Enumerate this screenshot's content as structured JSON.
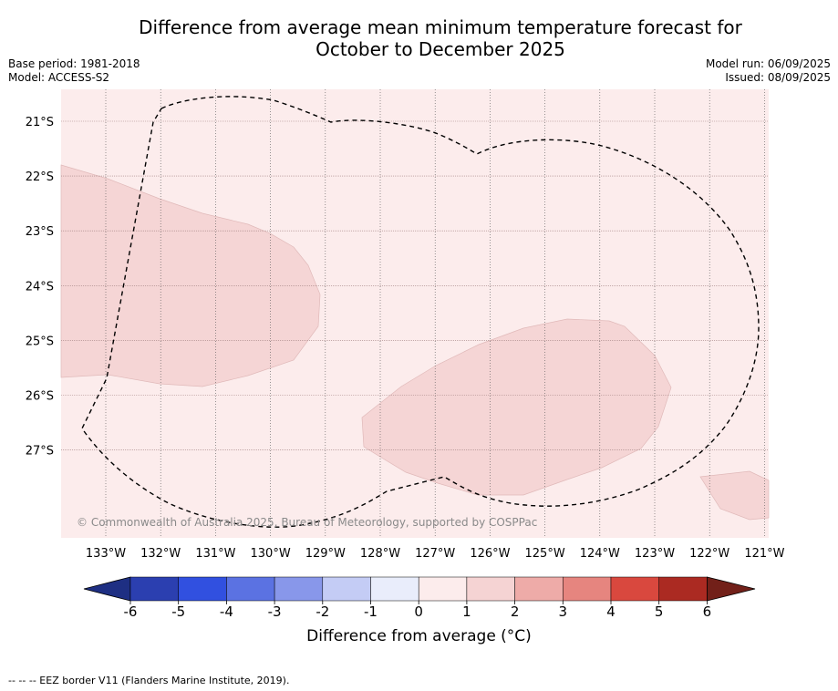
{
  "title": {
    "line1": "Difference from average mean minimum temperature forecast for",
    "line2": "October to December 2025"
  },
  "meta_left": {
    "base_period": "Base period: 1981-2018",
    "model": "Model: ACCESS-S2"
  },
  "meta_right": {
    "model_run": "Model run: 06/09/2025",
    "issued": "Issued: 08/09/2025"
  },
  "map": {
    "lat_labels": [
      "21°S",
      "22°S",
      "23°S",
      "24°S",
      "25°S",
      "26°S",
      "27°S"
    ],
    "lon_labels": [
      "133°W",
      "132°W",
      "131°W",
      "130°W",
      "129°W",
      "128°W",
      "127°W",
      "126°W",
      "125°W",
      "124°W",
      "123°W",
      "122°W",
      "121°W"
    ],
    "background_category": "0 to 1",
    "shaded_category": "1 to 2",
    "credit": "© Commonwealth of Australia 2025, Bureau of Meteorology, supported by COSPPac"
  },
  "colorbar": {
    "ticks": [
      "-6",
      "-5",
      "-4",
      "-3",
      "-2",
      "-1",
      "0",
      "1",
      "2",
      "3",
      "4",
      "5",
      "6"
    ],
    "colors": [
      "#1e2f83",
      "#2b3fb0",
      "#3150e0",
      "#5b72e2",
      "#8897ea",
      "#c4ccf5",
      "#e9edfb",
      "#fcecec",
      "#f5d3d3",
      "#eeaba8",
      "#e6857f",
      "#d9483e",
      "#ab2a22",
      "#722019"
    ],
    "label": "Difference from average (°C)"
  },
  "footnote": "-- -- -- EEZ border V11 (Flanders Marine Institute, 2019)."
}
